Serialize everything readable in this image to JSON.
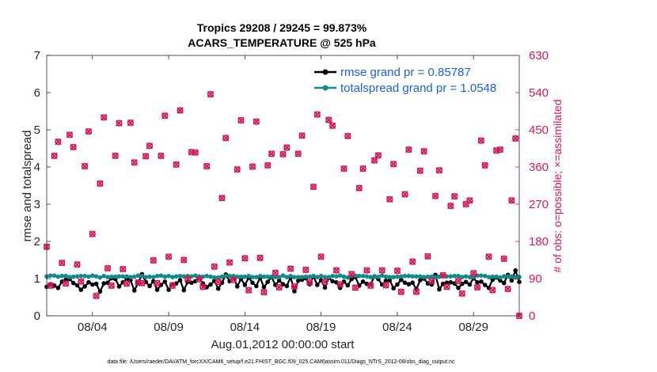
{
  "chart_data": {
    "type": "line",
    "title": "Tropics 29208 / 29245 = 99.873%",
    "subtitle": "ACARS_TEMPERATURE @ 525 hPa",
    "xlabel": "Aug.01,2012 00:00:00 start",
    "ylabel": "rmse and totalspread",
    "y2label": "# of obs: o=possible; ×=assimilated",
    "footer": "data file: /Users/raeder/DAI/ATM_forcXX/CAM6_setup/f.e21.FHIST_BGC.f09_025.CAM6assim.011/Diags_NTrS_2012-08/obs_diag_output.nc",
    "xlim": [
      1.0,
      32.0
    ],
    "ylim": [
      0,
      7
    ],
    "y2lim": [
      0,
      630
    ],
    "x_ticks": [
      4,
      9,
      14,
      19,
      24,
      29
    ],
    "x_tick_labels": [
      "08/04",
      "08/09",
      "08/14",
      "08/19",
      "08/24",
      "08/29"
    ],
    "y_ticks": [
      0,
      1,
      2,
      3,
      4,
      5,
      6,
      7
    ],
    "y2_ticks": [
      0,
      90,
      180,
      270,
      360,
      450,
      540,
      630
    ],
    "legend_position": "top-right",
    "colors": {
      "rmse": "#000000",
      "spread": "#128a8a",
      "obs": "#d01955",
      "legend_text": "#1f5fd6"
    },
    "series": [
      {
        "name": "rmse grand pr = 0.85787",
        "axis": "left",
        "values": [
          0.78,
          0.85,
          0.81,
          0.75,
          0.92,
          0.97,
          0.99,
          0.88,
          0.82,
          0.7,
          0.79,
          0.9,
          0.84,
          0.86,
          0.65,
          0.87,
          0.89,
          1.01,
          0.99,
          0.79,
          0.9,
          0.99,
          0.96,
          0.68,
          0.88,
          1.12,
          0.91,
          0.8,
          0.93,
          0.7,
          0.83,
          0.92,
          0.7,
          0.85,
          0.87,
          0.96,
          0.69,
          0.91,
          0.89,
          0.93,
          1.02,
          0.87,
          0.77,
          0.84,
          0.94,
          0.73,
          0.89,
          1.11,
          0.93,
          1.06,
          0.79,
          0.99,
          0.83,
          1.03,
          0.89,
          0.8,
          1.03,
          0.77,
          0.91,
          1.04,
          0.83,
          0.95,
          0.85,
          0.8,
          1.04,
          0.66,
          0.95,
          0.97,
          1.01,
          0.85,
          1.06,
          0.83,
          0.96,
          0.76,
          1.02,
          0.93,
          0.9,
          0.75,
          0.92,
          0.82,
          0.99,
          1.04,
          0.81,
          0.92,
          0.86,
          0.85,
          1.06,
          0.99,
          0.84,
          0.94,
          0.96,
          0.74,
          0.84,
          0.97,
          0.89,
          0.85,
          0.89,
          0.71,
          0.96,
          1.0,
          0.87,
          0.84,
          1.1,
          0.71,
          0.86,
          0.89,
          0.9,
          0.87,
          0.75,
          0.86,
          0.91,
          0.84,
          1.01,
          0.9,
          0.92,
          0.83,
          0.75,
          0.97,
          1.03,
          0.95,
          0.88,
          1.1,
          0.95,
          1.22,
          0.91
        ]
      },
      {
        "name": "totalspread grand pr = 1.0548",
        "axis": "left",
        "values": [
          1.06,
          1.08,
          1.08,
          1.05,
          1.07,
          1.07,
          1.04,
          1.05,
          1.06,
          1.07,
          1.07,
          1.05,
          1.08,
          1.06,
          1.03,
          1.07,
          1.04,
          1.05,
          1.05,
          1.06,
          1.06,
          1.06,
          1.04,
          1.05,
          1.08,
          1.07,
          1.04,
          1.05,
          1.04,
          1.07,
          1.08,
          1.05,
          1.07,
          1.04,
          1.06,
          1.07,
          1.06,
          1.07,
          1.06,
          1.08,
          1.06,
          1.05,
          1.07,
          1.05,
          1.03,
          1.03,
          1.05,
          1.07,
          1.07,
          1.07,
          1.05,
          1.05,
          1.05,
          1.07,
          1.04,
          1.04,
          1.07,
          1.05,
          1.05,
          1.05,
          1.04,
          1.04,
          1.08,
          1.04,
          1.07,
          1.04,
          1.04,
          1.04,
          1.05,
          1.05,
          1.07,
          1.04,
          1.07,
          1.04,
          1.04,
          1.07,
          1.06,
          1.08,
          1.05,
          1.03,
          1.07,
          1.08,
          1.07,
          1.07,
          1.06,
          1.04,
          1.05,
          1.05,
          1.08,
          1.05,
          1.04,
          1.04,
          1.05,
          1.06,
          1.07,
          1.07,
          1.06,
          1.06,
          1.06,
          1.04,
          1.05,
          1.05,
          1.04,
          1.05,
          1.07,
          1.06,
          1.06,
          1.07,
          1.07,
          1.04,
          1.06,
          1.04,
          1.04,
          1.08,
          1.08,
          1.07,
          1.04,
          1.05,
          1.05,
          1.03,
          1.06,
          1.06,
          1.05,
          1.03,
          1.04
        ]
      },
      {
        "name": "# of obs",
        "axis": "right",
        "x": [
          1.0,
          1.25,
          1.5,
          1.75,
          2.0,
          2.25,
          2.5,
          2.75,
          3.0,
          3.25,
          3.5,
          3.75,
          4.0,
          4.25,
          4.5,
          4.75,
          5.0,
          5.25,
          5.5,
          5.75,
          6.0,
          6.25,
          6.5,
          6.75,
          7.0,
          7.25,
          7.5,
          7.75,
          8.0,
          8.25,
          8.5,
          8.75,
          9.0,
          9.25,
          9.5,
          9.75,
          10.0,
          10.25,
          10.5,
          10.75,
          11.0,
          11.25,
          11.5,
          11.75,
          12.0,
          12.25,
          12.5,
          12.75,
          13.0,
          13.25,
          13.5,
          13.75,
          14.0,
          14.25,
          14.5,
          14.75,
          15.0,
          15.25,
          15.5,
          15.75,
          16.0,
          16.25,
          16.5,
          16.75,
          17.0,
          17.25,
          17.5,
          17.75,
          18.0,
          18.25,
          18.5,
          18.75,
          19.0,
          19.25,
          19.5,
          19.75,
          20.0,
          20.25,
          20.5,
          20.75,
          21.0,
          21.25,
          21.5,
          21.75,
          22.0,
          22.25,
          22.5,
          22.75,
          23.0,
          23.25,
          23.5,
          23.75,
          24.0,
          24.25,
          24.5,
          24.75,
          25.0,
          25.25,
          25.5,
          25.75,
          26.0,
          26.25,
          26.5,
          26.75,
          27.0,
          27.25,
          27.5,
          27.75,
          28.0,
          28.25,
          28.5,
          28.75,
          29.0,
          29.25,
          29.5,
          29.75,
          30.0,
          30.25,
          30.5,
          30.75,
          31.0,
          31.25,
          31.5,
          31.75,
          32.0
        ],
        "values": [
          167,
          73,
          387,
          421,
          128,
          78,
          438,
          408,
          124,
          83,
          362,
          446,
          198,
          48,
          320,
          480,
          115,
          73,
          387,
          466,
          113,
          78,
          467,
          371,
          81,
          79,
          386,
          411,
          134,
          79,
          387,
          484,
          143,
          73,
          366,
          497,
          135,
          89,
          396,
          395,
          88,
          70,
          362,
          536,
          119,
          82,
          285,
          430,
          129,
          87,
          354,
          473,
          139,
          62,
          361,
          470,
          140,
          57,
          364,
          392,
          104,
          69,
          391,
          407,
          114,
          71,
          392,
          436,
          111,
          81,
          312,
          487,
          143,
          82,
          474,
          460,
          110,
          76,
          356,
          435,
          101,
          68,
          309,
          356,
          110,
          73,
          376,
          388,
          110,
          74,
          282,
          367,
          109,
          58,
          294,
          402,
          131,
          58,
          351,
          398,
          144,
          84,
          290,
          352,
          98,
          70,
          266,
          289,
          84,
          54,
          270,
          279,
          103,
          69,
          424,
          364,
          143,
          62,
          400,
          402,
          138,
          65,
          279,
          429,
          0
        ]
      }
    ]
  }
}
